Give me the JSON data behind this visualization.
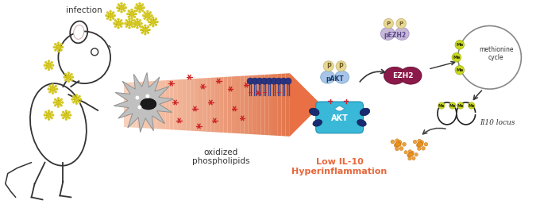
{
  "bg_color": "#ffffff",
  "arrow_color": "#e8673a",
  "infection_text": "infection",
  "oxphos_text": "oxidized\nphospholipids",
  "pakt_text": "pAKT",
  "ezh2_text": "EZH2",
  "pezh2_text": "pEZH2",
  "akt_text": "AKT",
  "methcycle_text": "methionine\ncycle",
  "il10locus_text": "Il10 locus",
  "lowil10_text": "Low IL-10\nHyperinflammation",
  "p_label": "P",
  "me_label": "Me",
  "virus_color": "#d4c820",
  "virus_outline": "#b8a800",
  "lipid_head_color": "#2a3580",
  "lipid_tail_color": "#3a4590",
  "pakt_body_color": "#a8c4e8",
  "pakt_p_color": "#e8d898",
  "ezh2_color": "#8b1a4a",
  "pezh2_body_color": "#c8b8d8",
  "akt_color": "#3ab8d8",
  "star_color": "#cc2222",
  "orange_blob_color": "#e8921a",
  "me_dot_color": "#c8d820",
  "cycle_circle_color": "#888888",
  "lowil10_color": "#e8673a",
  "cell_color": "#b0b0b0",
  "nucleus_color": "#2a2a2a"
}
